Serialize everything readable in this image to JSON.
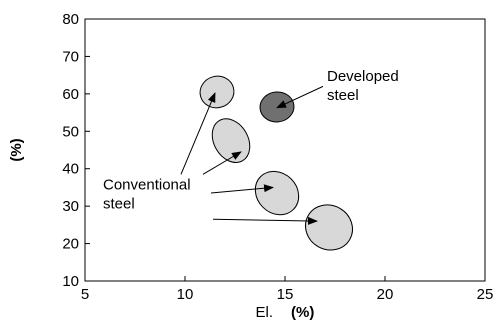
{
  "chart_data": {
    "type": "scatter",
    "title": "",
    "xlabel": "El.",
    "xlabel_unit": "(%)",
    "ylabel": "(%)",
    "xlim": [
      5,
      25
    ],
    "ylim": [
      10,
      80
    ],
    "xticks": [
      "5",
      "10",
      "15",
      "20",
      "25"
    ],
    "yticks": [
      "10",
      "20",
      "30",
      "40",
      "50",
      "60",
      "70",
      "80"
    ],
    "grid": false,
    "legend": "none",
    "regions": [
      {
        "group": "Conventional steel",
        "cx": 11.6,
        "cy": 60.5,
        "rx": 0.85,
        "ry": 4.2,
        "angle_deg": -15,
        "fill": "#d8d8d8"
      },
      {
        "group": "Conventional steel",
        "cx": 12.3,
        "cy": 47.5,
        "rx": 0.85,
        "ry": 6.2,
        "angle_deg": -30,
        "fill": "#d8d8d8"
      },
      {
        "group": "Conventional steel",
        "cx": 14.6,
        "cy": 33.5,
        "rx": 1.0,
        "ry": 6.2,
        "angle_deg": -45,
        "fill": "#d8d8d8"
      },
      {
        "group": "Conventional steel",
        "cx": 17.2,
        "cy": 24.3,
        "rx": 1.1,
        "ry": 6.4,
        "angle_deg": -60,
        "fill": "#d8d8d8"
      },
      {
        "group": "Developed steel",
        "cx": 14.6,
        "cy": 56.5,
        "rx": 0.85,
        "ry": 4.0,
        "angle_deg": -5,
        "fill": "#707070"
      }
    ],
    "annotations": [
      {
        "lines": [
          "Developed",
          "steel"
        ],
        "text_x": 17.1,
        "text_y": 63.5,
        "arrows": [
          {
            "from": [
              16.9,
              62.0
            ],
            "to": [
              14.6,
              56.3
            ]
          }
        ]
      },
      {
        "lines": [
          "Conventional",
          "steel"
        ],
        "text_x": 5.9,
        "text_y": 34.5,
        "arrows": [
          {
            "from": [
              9.8,
              38.5
            ],
            "to": [
              11.5,
              60.2
            ]
          },
          {
            "from": [
              10.9,
              38.5
            ],
            "to": [
              12.8,
              44.5
            ]
          },
          {
            "from": [
              11.3,
              33.5
            ],
            "to": [
              14.4,
              35.0
            ]
          },
          {
            "from": [
              11.4,
              26.5
            ],
            "to": [
              16.6,
              26.0
            ]
          }
        ]
      }
    ]
  }
}
